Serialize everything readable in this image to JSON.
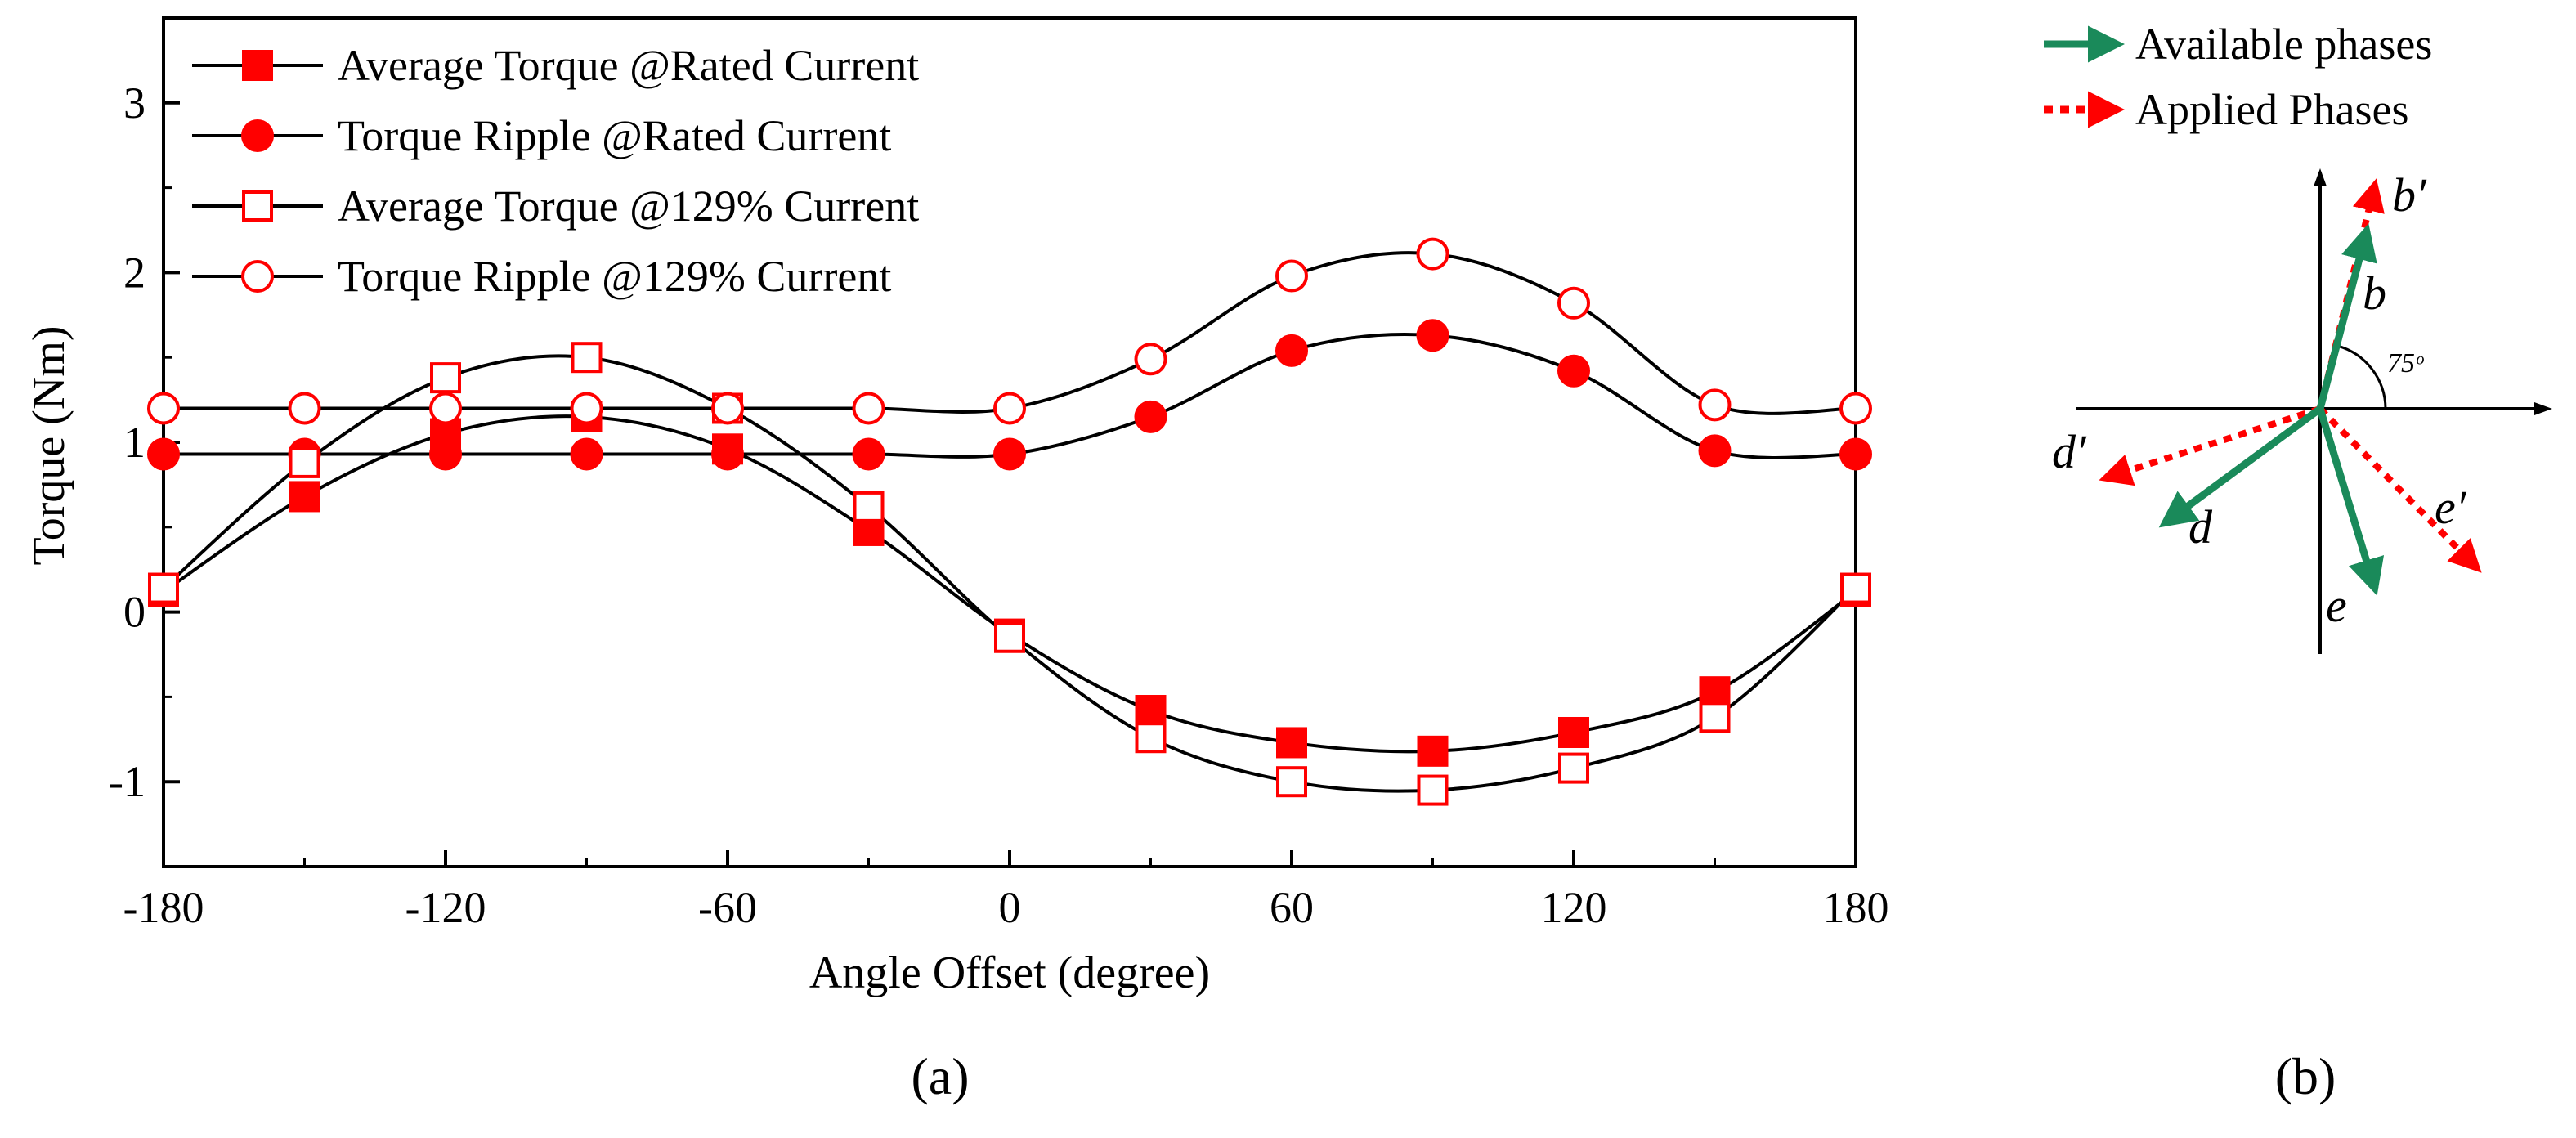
{
  "colors": {
    "red": "#ff0000",
    "green": "#1a8a5a",
    "black": "#000000"
  },
  "chart_data": {
    "type": "line",
    "xlabel": "Angle Offset (degree)",
    "ylabel": "Torque (Nm)",
    "xlim": [
      -180,
      180
    ],
    "ylim": [
      -1.5,
      3.5
    ],
    "xticks": [
      "-180",
      "-120",
      "-60",
      "0",
      "60",
      "120",
      "180"
    ],
    "yticks": [
      "-1",
      "0",
      "1",
      "2",
      "3"
    ],
    "x": [
      -180,
      -150,
      -120,
      -90,
      -60,
      -30,
      0,
      30,
      60,
      90,
      120,
      150,
      180
    ],
    "legend_position": "top-left",
    "series": [
      {
        "name": "Average Torque @Rated Current",
        "marker": "square-filled",
        "values": [
          0.12,
          0.68,
          1.05,
          1.15,
          0.96,
          0.48,
          -0.13,
          -0.58,
          -0.77,
          -0.82,
          -0.71,
          -0.47,
          0.12
        ]
      },
      {
        "name": "Torque Ripple @Rated Current",
        "marker": "circle-filled",
        "values": [
          0.93,
          0.93,
          0.93,
          0.93,
          0.93,
          0.93,
          0.93,
          1.15,
          1.54,
          1.63,
          1.42,
          0.95,
          0.93
        ]
      },
      {
        "name": "Average Torque @129% Current",
        "marker": "square-open",
        "values": [
          0.14,
          0.88,
          1.38,
          1.5,
          1.2,
          0.62,
          -0.15,
          -0.74,
          -1.0,
          -1.05,
          -0.92,
          -0.62,
          0.14
        ]
      },
      {
        "name": "Torque Ripple @129% Current",
        "marker": "circle-open",
        "values": [
          1.2,
          1.2,
          1.2,
          1.2,
          1.2,
          1.2,
          1.2,
          1.49,
          1.98,
          2.11,
          1.82,
          1.22,
          1.2
        ]
      }
    ]
  },
  "panel_a": {
    "label": "(a)"
  },
  "panel_b": {
    "label": "(b)",
    "legend": {
      "available": "Available phases",
      "applied": "Applied Phases"
    },
    "angle_label": "75ᵒ",
    "phase_labels": {
      "b_prime": "b′",
      "b": "b",
      "d_prime": "d′",
      "d": "d",
      "e_prime": "e′",
      "e": "e"
    }
  }
}
